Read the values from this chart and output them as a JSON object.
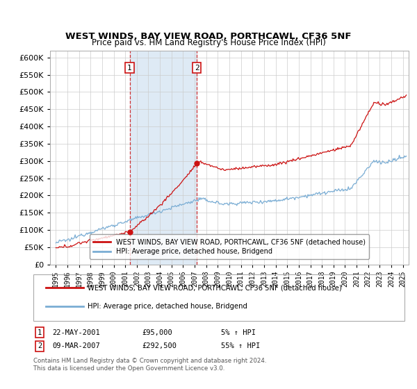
{
  "title1": "WEST WINDS, BAY VIEW ROAD, PORTHCAWL, CF36 5NF",
  "title2": "Price paid vs. HM Land Registry's House Price Index (HPI)",
  "legend_line1": "WEST WINDS, BAY VIEW ROAD, PORTHCAWL, CF36 5NF (detached house)",
  "legend_line2": "HPI: Average price, detached house, Bridgend",
  "transaction1": {
    "label": "1",
    "date": "22-MAY-2001",
    "price": "£95,000",
    "pct": "5% ↑ HPI",
    "year": 2001.38,
    "price_val": 95000
  },
  "transaction2": {
    "label": "2",
    "date": "09-MAR-2007",
    "price": "£292,500",
    "pct": "55% ↑ HPI",
    "year": 2007.19,
    "price_val": 292500
  },
  "footnote1": "Contains HM Land Registry data © Crown copyright and database right 2024.",
  "footnote2": "This data is licensed under the Open Government Licence v3.0.",
  "hpi_color": "#7aadd4",
  "price_color": "#cc1111",
  "shading_color": "#deeaf5",
  "marker_box_color": "#cc1111",
  "ylim": [
    0,
    620000
  ],
  "yticks": [
    0,
    50000,
    100000,
    150000,
    200000,
    250000,
    300000,
    350000,
    400000,
    450000,
    500000,
    550000,
    600000
  ],
  "xlim": [
    1994.5,
    2025.5
  ],
  "xtick_years": [
    1995,
    1996,
    1997,
    1998,
    1999,
    2000,
    2001,
    2002,
    2003,
    2004,
    2005,
    2006,
    2007,
    2008,
    2009,
    2010,
    2011,
    2012,
    2013,
    2014,
    2015,
    2016,
    2017,
    2018,
    2019,
    2020,
    2021,
    2022,
    2023,
    2024,
    2025
  ]
}
